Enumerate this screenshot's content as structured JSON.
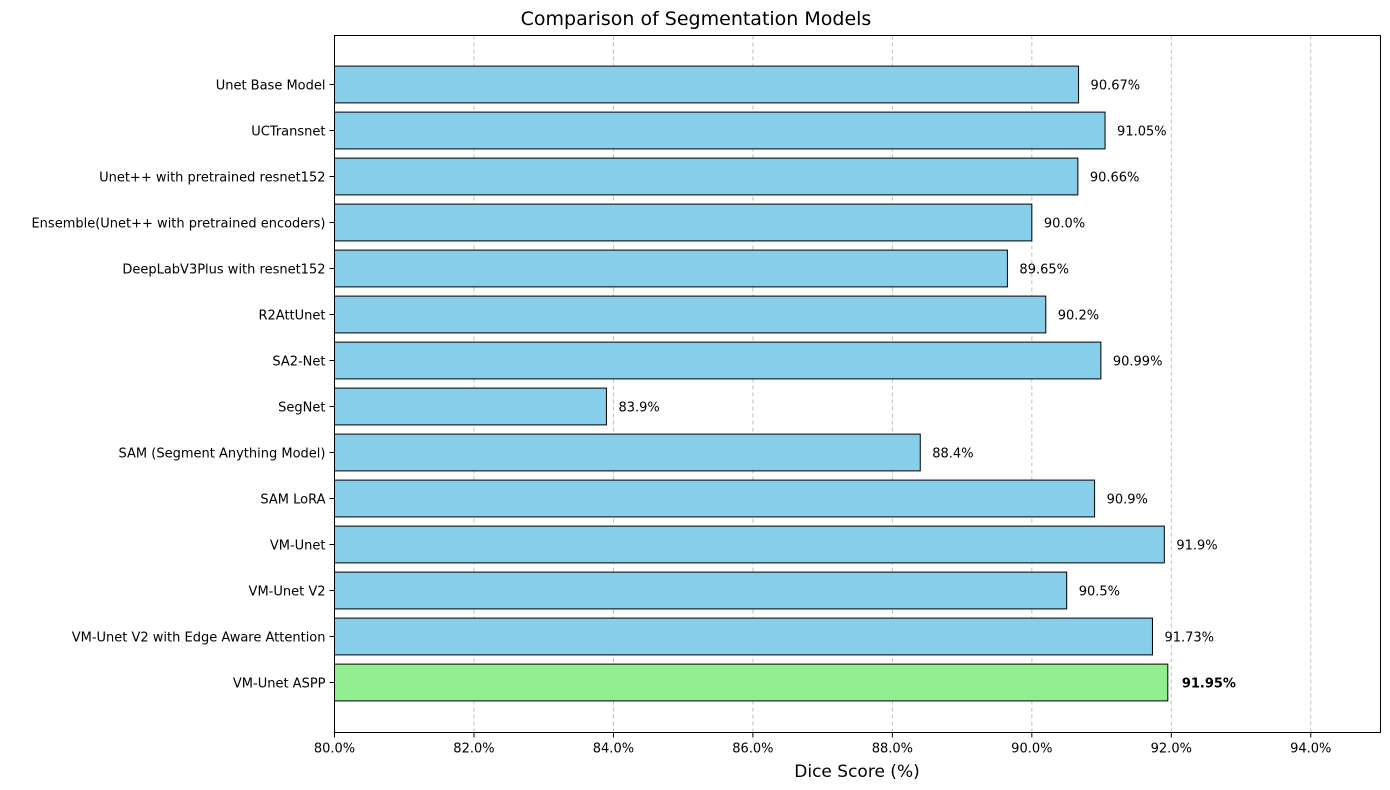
{
  "chart_data": {
    "type": "bar",
    "orientation": "horizontal",
    "title": "Comparison of Segmentation Models",
    "xlabel": "Dice Score (%)",
    "ylabel": "",
    "xlim": [
      80,
      95
    ],
    "xticks": [
      80,
      82,
      84,
      86,
      88,
      90,
      92,
      94
    ],
    "xtick_labels": [
      "80.0%",
      "82.0%",
      "84.0%",
      "86.0%",
      "88.0%",
      "90.0%",
      "92.0%",
      "94.0%"
    ],
    "grid": "vertical dashed",
    "categories": [
      "Unet Base Model",
      "UCTransnet",
      "Unet++ with pretrained resnet152",
      "Ensemble(Unet++ with pretrained encoders)",
      "DeepLabV3Plus with resnet152",
      "R2AttUnet",
      "SA2-Net",
      "SegNet",
      "SAM (Segment Anything Model)",
      "SAM LoRA",
      "VM-Unet",
      "VM-Unet V2",
      "VM-Unet V2 with Edge Aware Attention",
      "VM-Unet ASPP"
    ],
    "values": [
      90.67,
      91.05,
      90.66,
      90.0,
      89.65,
      90.2,
      90.99,
      83.9,
      88.4,
      90.9,
      91.9,
      90.5,
      91.73,
      91.95
    ],
    "value_labels": [
      "90.67%",
      "91.05%",
      "90.66%",
      "90.0%",
      "89.65%",
      "90.2%",
      "90.99%",
      "83.9%",
      "88.4%",
      "90.9%",
      "91.9%",
      "90.5%",
      "91.73%",
      "91.95%"
    ],
    "highlighted_index": 13,
    "colors": {
      "bar": "#87ceeb",
      "highlight": "#90ee90",
      "edge": "#000000",
      "grid": "#c0c0c0"
    }
  }
}
